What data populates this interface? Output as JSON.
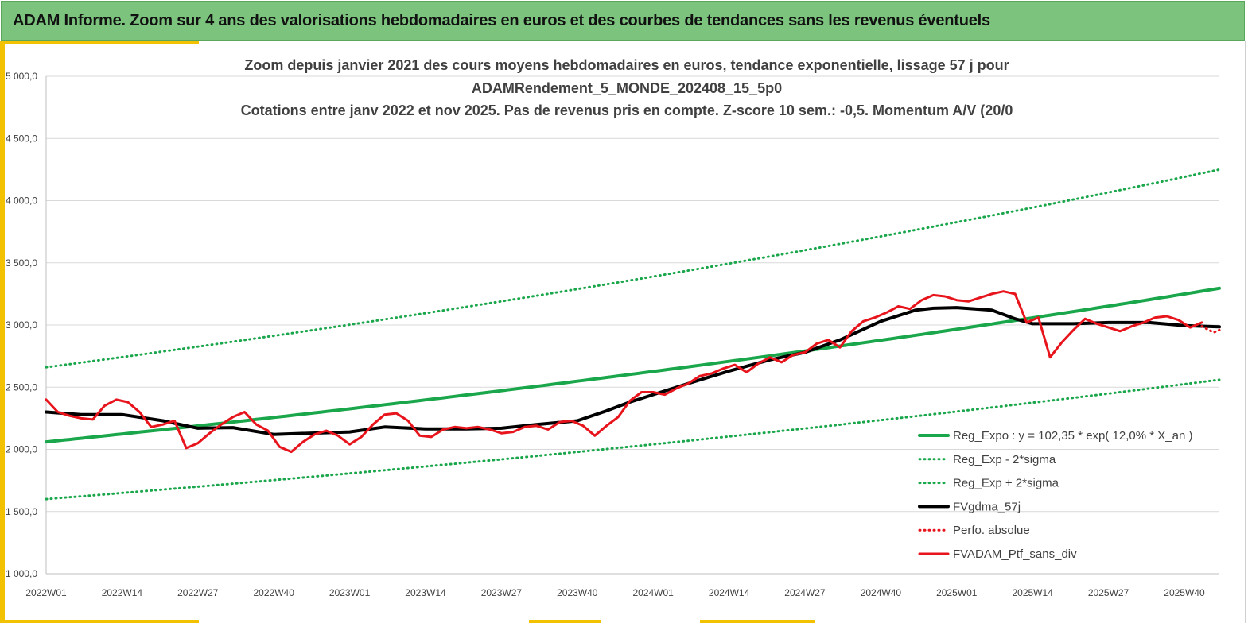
{
  "banner": {
    "title": "ADAM Informe. Zoom sur 4 ans des valorisations hebdomadaires en euros et des courbes de tendances sans les revenus éventuels"
  },
  "colors": {
    "banner": "#7cc47e",
    "accent": "#f2c200",
    "trend": "#1aa64a",
    "smoothed": "#000000",
    "portfolio": "#e8141c",
    "absolute": "#e8141c"
  },
  "chart_data": {
    "type": "line",
    "title_lines": [
      "Zoom depuis janvier 2021 des cours moyens hebdomadaires  en euros, tendance exponentielle, lissage 57 j pour",
      "ADAMRendement_5_MONDE_202408_15_5p0",
      "Cotations  entre janv 2022 et nov 2025. Pas de revenus pris en compte. Z-score 10 sem.: -0,5. Momentum A/V (20/0"
    ],
    "ylim": [
      1000,
      5000
    ],
    "yticks": [
      "1 000,0",
      "1 500,0",
      "2 000,0",
      "2 500,0",
      "3 000,0",
      "3 500,0",
      "4 000,0",
      "4 500,0",
      "5 000,0"
    ],
    "ytick_values": [
      1000,
      1500,
      2000,
      2500,
      3000,
      3500,
      4000,
      4500,
      5000
    ],
    "xlim": [
      0,
      201
    ],
    "xticks": [
      "2022W01",
      "2022W14",
      "2022W27",
      "2022W40",
      "2023W01",
      "2023W14",
      "2023W27",
      "2023W40",
      "2024W01",
      "2024W14",
      "2024W27",
      "2024W40",
      "2025W01",
      "2025W14",
      "2025W27",
      "2025W40"
    ],
    "xtick_positions": [
      0,
      13,
      26,
      39,
      52,
      65,
      78,
      91,
      104,
      117,
      130,
      143,
      156,
      169,
      182,
      195
    ],
    "grid": "horizontal",
    "legend_position": "bottom-right",
    "series": [
      {
        "name": "Reg_Expo : y = 102,35 * exp( 12,0% *  X_an )",
        "style": "solid",
        "color": "#1aa64a",
        "width": 4,
        "x": [
          0,
          201
        ],
        "y": [
          2060,
          3295
        ],
        "curve": "exponential"
      },
      {
        "name": "Reg_Exp - 2*sigma",
        "style": "dotted",
        "color": "#1aa64a",
        "width": 3,
        "x": [
          0,
          201
        ],
        "y": [
          1600,
          2560
        ],
        "curve": "exponential"
      },
      {
        "name": "Reg_Exp + 2*sigma",
        "style": "dotted",
        "color": "#1aa64a",
        "width": 3,
        "x": [
          0,
          201
        ],
        "y": [
          2660,
          4250
        ],
        "curve": "exponential"
      },
      {
        "name": "FVgdma_57j",
        "style": "solid",
        "color": "#000000",
        "width": 4,
        "x": [
          0,
          6,
          13,
          20,
          26,
          32,
          39,
          45,
          52,
          58,
          65,
          72,
          78,
          84,
          91,
          96,
          100,
          104,
          110,
          117,
          124,
          130,
          136,
          143,
          149,
          152,
          156,
          162,
          166,
          169,
          176,
          182,
          189,
          195,
          201
        ],
        "y": [
          2300,
          2280,
          2280,
          2230,
          2170,
          2175,
          2120,
          2130,
          2140,
          2180,
          2165,
          2165,
          2170,
          2200,
          2230,
          2310,
          2380,
          2440,
          2530,
          2630,
          2720,
          2780,
          2880,
          3030,
          3120,
          3135,
          3140,
          3120,
          3050,
          3010,
          3010,
          3020,
          3020,
          2995,
          2985
        ]
      },
      {
        "name": "Perfo. absolue",
        "style": "dotted",
        "color": "#e8141c",
        "width": 3,
        "x": [
          198,
          199,
          200,
          201
        ],
        "y": [
          2990,
          2965,
          2940,
          2960
        ]
      },
      {
        "name": "FVADAM_Ptf_sans_div",
        "style": "solid",
        "color": "#e8141c",
        "width": 3,
        "x": [
          0,
          2,
          4,
          6,
          8,
          10,
          12,
          14,
          16,
          18,
          20,
          22,
          24,
          26,
          28,
          30,
          32,
          34,
          36,
          38,
          40,
          42,
          44,
          46,
          48,
          50,
          52,
          54,
          56,
          58,
          60,
          62,
          64,
          66,
          68,
          70,
          72,
          74,
          76,
          78,
          80,
          82,
          84,
          86,
          88,
          90,
          92,
          94,
          96,
          98,
          100,
          102,
          104,
          106,
          108,
          110,
          112,
          114,
          116,
          118,
          120,
          122,
          124,
          126,
          128,
          130,
          132,
          134,
          136,
          138,
          140,
          142,
          144,
          146,
          148,
          150,
          152,
          154,
          156,
          158,
          160,
          162,
          164,
          166,
          168,
          170,
          172,
          174,
          176,
          178,
          180,
          182,
          184,
          186,
          188,
          190,
          192,
          194,
          196,
          198
        ],
        "y": [
          2400,
          2300,
          2270,
          2250,
          2240,
          2350,
          2400,
          2380,
          2300,
          2180,
          2200,
          2230,
          2010,
          2050,
          2130,
          2200,
          2260,
          2300,
          2200,
          2150,
          2020,
          1980,
          2060,
          2120,
          2150,
          2110,
          2040,
          2100,
          2200,
          2280,
          2290,
          2230,
          2110,
          2100,
          2160,
          2180,
          2170,
          2180,
          2160,
          2130,
          2140,
          2180,
          2190,
          2160,
          2220,
          2230,
          2190,
          2110,
          2190,
          2260,
          2390,
          2460,
          2460,
          2440,
          2490,
          2530,
          2590,
          2610,
          2650,
          2680,
          2620,
          2690,
          2740,
          2700,
          2760,
          2780,
          2850,
          2880,
          2820,
          2950,
          3030,
          3060,
          3100,
          3150,
          3130,
          3200,
          3240,
          3230,
          3200,
          3190,
          3220,
          3250,
          3270,
          3250,
          3020,
          3060,
          2740,
          2860,
          2960,
          3050,
          3010,
          2980,
          2950,
          2990,
          3020,
          3060,
          3070,
          3040,
          2980,
          3020
        ]
      }
    ]
  }
}
